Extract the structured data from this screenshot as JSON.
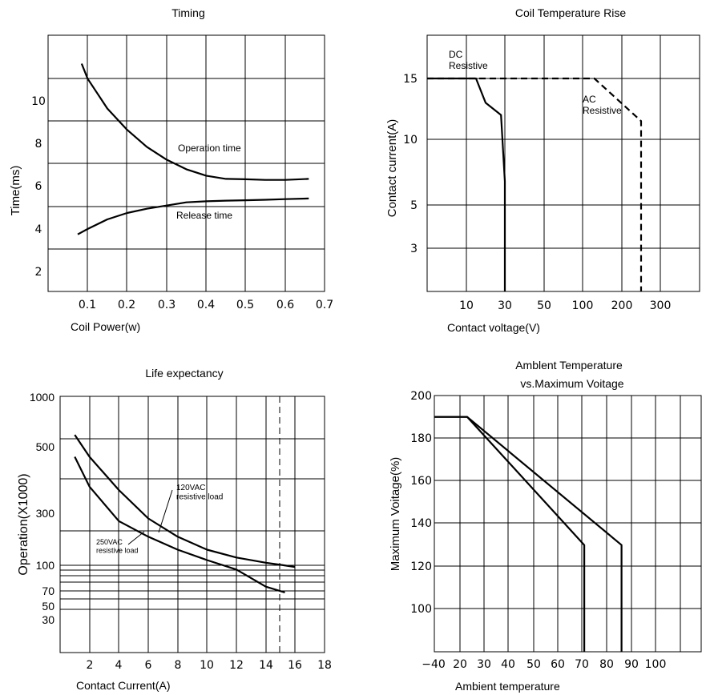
{
  "chart_data": [
    {
      "type": "line",
      "title": "Timing",
      "xlabel": "Coil Power(w)",
      "ylabel": "Time(ms)",
      "xlim": [
        0,
        0.7
      ],
      "ylim": [
        1,
        12
      ],
      "x_ticks": [
        "0.1",
        "0.2",
        "0.3",
        "0.4",
        "0.5",
        "0.6",
        "0.7"
      ],
      "y_ticks": [
        "2",
        "4",
        "6",
        "8",
        "10"
      ],
      "grid": true,
      "series": [
        {
          "name": "Operation time",
          "x": [
            0.085,
            0.1,
            0.125,
            0.15,
            0.2,
            0.25,
            0.3,
            0.35,
            0.4,
            0.45,
            0.5,
            0.55,
            0.6,
            0.66
          ],
          "y": [
            11.7,
            11.0,
            10.3,
            9.6,
            8.6,
            7.8,
            7.2,
            6.75,
            6.45,
            6.3,
            6.28,
            6.25,
            6.25,
            6.3
          ]
        },
        {
          "name": "Release time",
          "x": [
            0.075,
            0.1,
            0.15,
            0.2,
            0.25,
            0.3,
            0.35,
            0.4,
            0.45,
            0.5,
            0.55,
            0.6,
            0.66
          ],
          "y": [
            3.7,
            3.95,
            4.4,
            4.7,
            4.9,
            5.05,
            5.2,
            5.25,
            5.28,
            5.3,
            5.32,
            5.35,
            5.38
          ]
        }
      ]
    },
    {
      "type": "line",
      "title": "Coil Temperature Rise",
      "xlabel": "Contact voltage(V)",
      "ylabel": "Contact current(A)",
      "x_ticks": [
        "10",
        "30",
        "50",
        "100",
        "200",
        "300"
      ],
      "y_ticks": [
        "3",
        "5",
        "10",
        "15"
      ],
      "grid": true,
      "series": [
        {
          "name": "DC\nResistive",
          "style": "solid",
          "x": [
            1,
            15,
            20,
            28,
            30,
            30
          ],
          "y": [
            15,
            15,
            13,
            12,
            6.8,
            1
          ]
        },
        {
          "name": "AC\nResistive",
          "style": "dashed",
          "x": [
            1,
            15,
            130,
            250,
            250
          ],
          "y": [
            15,
            15,
            15,
            11.5,
            1
          ]
        }
      ]
    },
    {
      "type": "line",
      "title": "Life expectancy",
      "xlabel": "Contact Current(A)",
      "ylabel": "Operation(X1000)",
      "xlim": [
        0,
        18
      ],
      "x_ticks": [
        "2",
        "4",
        "6",
        "8",
        "10",
        "12",
        "14",
        "16",
        "18"
      ],
      "y_ticks": [
        "30",
        "50",
        "70",
        "100",
        "300",
        "500",
        "1000"
      ],
      "grid": true,
      "marker_line_x": 15.3,
      "series": [
        {
          "name": "120VAC\nresistive load",
          "x": [
            1,
            2,
            4,
            6,
            8,
            10,
            12,
            14,
            15,
            16
          ],
          "y": [
            620,
            470,
            370,
            280,
            210,
            160,
            130,
            110,
            102,
            98
          ]
        },
        {
          "name": "250VAC\nresistive load",
          "x": [
            1,
            2,
            4,
            6,
            8,
            10,
            12,
            14,
            15.3
          ],
          "y": [
            470,
            380,
            270,
            210,
            160,
            120,
            95,
            75,
            68
          ]
        }
      ]
    },
    {
      "type": "line",
      "title": "Amblent Temperature\nvs.Maximum Voitage",
      "xlabel": "Ambient temperature",
      "ylabel": "Maximum Voitage(%)",
      "xlim": [
        -40,
        100
      ],
      "ylim": [
        80,
        200
      ],
      "x_ticks": [
        "−40",
        "20",
        "30",
        "40",
        "50",
        "60",
        "70",
        "80",
        "90",
        "100"
      ],
      "y_ticks": [
        "100",
        "120",
        "140",
        "160",
        "180",
        "200"
      ],
      "grid": true,
      "series": [
        {
          "name": "",
          "x": [
            -40,
            23,
            71,
            71
          ],
          "y": [
            190,
            190,
            130,
            80
          ]
        },
        {
          "name": "",
          "x": [
            -40,
            23,
            86,
            86
          ],
          "y": [
            190,
            190,
            130,
            80
          ]
        }
      ]
    }
  ]
}
